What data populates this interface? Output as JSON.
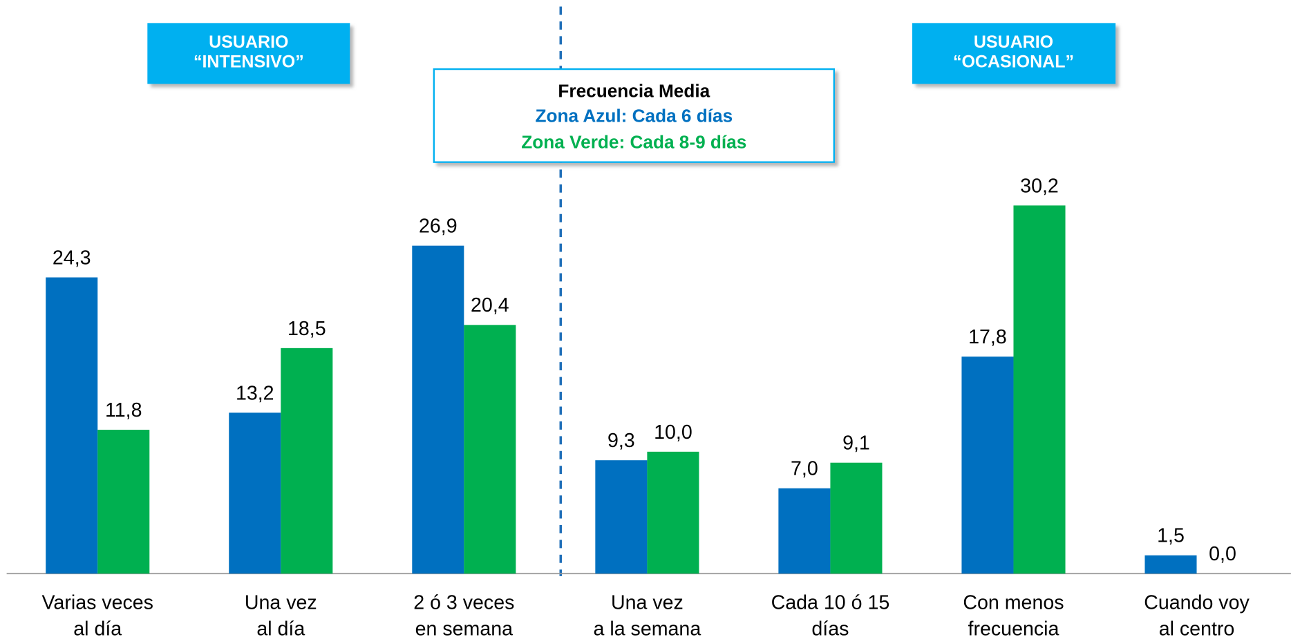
{
  "chart_data": {
    "type": "bar",
    "categories": [
      "Varias veces\nal día",
      "Una vez\nal día",
      "2 ó 3 veces\nen semana",
      "Una vez\na la semana",
      "Cada 10 ó 15\ndías",
      "Con menos\nfrecuencia",
      "Cuando voy\nal centro"
    ],
    "series": [
      {
        "color": "#0070c0",
        "values": [
          24.3,
          13.2,
          26.9,
          9.3,
          7.0,
          17.8,
          1.5
        ],
        "value_labels": [
          "24,3",
          "13,2",
          "26,9",
          "9,3",
          "7,0",
          "17,8",
          "1,5"
        ]
      },
      {
        "color": "#00b050",
        "values": [
          11.8,
          18.5,
          20.4,
          10.0,
          9.1,
          30.2,
          0.0
        ],
        "value_labels": [
          "11,8",
          "18,5",
          "20,4",
          "10,0",
          "9,1",
          "30,2",
          "0,0"
        ]
      }
    ],
    "ylim": [
      0,
      32
    ],
    "annotations": [
      "USUARIO\n“INTENSIVO”",
      "USUARIO\n“OCASIONAL”"
    ],
    "info_box": {
      "title": "Frecuencia Media",
      "line1": "Zona Azul: Cada 6 días",
      "line2": "Zona Verde: Cada 8-9 días"
    }
  }
}
